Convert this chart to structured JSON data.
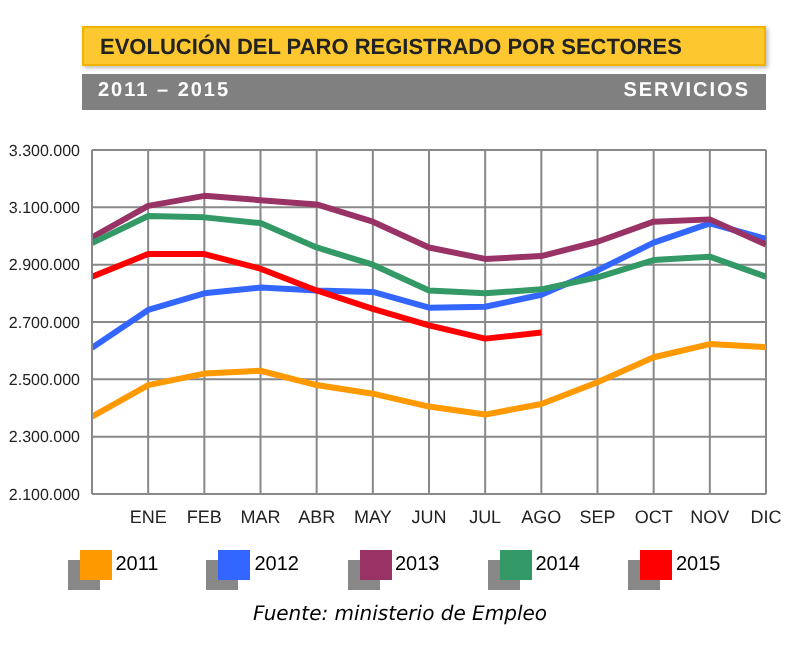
{
  "chart_data": {
    "type": "line",
    "title": "EVOLUCIÓN DEL PARO REGISTRADO POR SECTORES",
    "subtitle": "2011 – 2015",
    "annotations": [
      "SERVICIOS",
      "Fuente: ministerio de Empleo"
    ],
    "categories": [
      null,
      "ENE",
      "FEB",
      "MAR",
      "ABR",
      "MAY",
      "JUN",
      "JUL",
      "AGO",
      "SEP",
      "OCT",
      "NOV",
      "DIC"
    ],
    "series": [
      {
        "name": "2011",
        "color": "#ff9900",
        "values": [
          2370000,
          2480000,
          2520000,
          2530000,
          2480000,
          2450000,
          2405000,
          2377000,
          2414000,
          2490000,
          2577000,
          2623000,
          2612000
        ]
      },
      {
        "name": "2012",
        "color": "#3366ff",
        "values": [
          2610000,
          2742000,
          2800000,
          2820000,
          2810000,
          2805000,
          2750000,
          2753000,
          2795000,
          2880000,
          2977000,
          3044000,
          2990000
        ]
      },
      {
        "name": "2013",
        "color": "#993366",
        "values": [
          2995000,
          3105000,
          3140000,
          3125000,
          3110000,
          3050000,
          2960000,
          2920000,
          2930000,
          2980000,
          3050000,
          3058000,
          2970000
        ]
      },
      {
        "name": "2014",
        "color": "#339966",
        "values": [
          2975000,
          3070000,
          3065000,
          3045000,
          2960000,
          2900000,
          2810000,
          2800000,
          2814000,
          2856000,
          2916000,
          2928000,
          2858000
        ]
      },
      {
        "name": "2015",
        "color": "#ff0000",
        "values": [
          2858000,
          2937000,
          2937000,
          2886000,
          2810000,
          2746000,
          2688000,
          2642000,
          2663000,
          null,
          null,
          null,
          null
        ]
      }
    ],
    "ylim": [
      2100000,
      3300000
    ],
    "yticks": [
      {
        "value": 2100000,
        "label": "2.100.000"
      },
      {
        "value": 2300000,
        "label": "2.300.000"
      },
      {
        "value": 2500000,
        "label": "2.500.000"
      },
      {
        "value": 2700000,
        "label": "2.700.000"
      },
      {
        "value": 2900000,
        "label": "2.900.000"
      },
      {
        "value": 3100000,
        "label": "3.100.000"
      },
      {
        "value": 3300000,
        "label": "3.300.000"
      }
    ],
    "grid": true,
    "legend": "bottom",
    "marker": "none",
    "line_style": "solid"
  }
}
